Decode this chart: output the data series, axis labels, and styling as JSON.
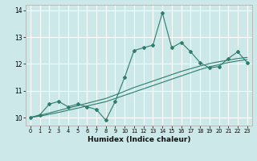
{
  "xlabel": "Humidex (Indice chaleur)",
  "ylabel": "",
  "bg_color": "#cce8e8",
  "grid_color": "#ffffff",
  "line_color": "#2e7d6e",
  "x_data": [
    0,
    1,
    2,
    3,
    4,
    5,
    6,
    7,
    8,
    9,
    10,
    11,
    12,
    13,
    14,
    15,
    16,
    17,
    18,
    19,
    20,
    21,
    22,
    23
  ],
  "y_main": [
    10.0,
    10.1,
    10.5,
    10.6,
    10.4,
    10.5,
    10.4,
    10.3,
    9.9,
    10.6,
    11.5,
    12.5,
    12.6,
    12.7,
    13.9,
    12.6,
    12.8,
    12.45,
    12.05,
    11.85,
    11.9,
    12.2,
    12.45,
    12.05
  ],
  "y_trend1": [
    10.0,
    10.05,
    10.12,
    10.19,
    10.27,
    10.35,
    10.43,
    10.51,
    10.59,
    10.71,
    10.83,
    10.95,
    11.07,
    11.19,
    11.31,
    11.43,
    11.55,
    11.67,
    11.79,
    11.89,
    11.97,
    12.05,
    12.11,
    12.16
  ],
  "y_trend2": [
    10.0,
    10.08,
    10.17,
    10.26,
    10.35,
    10.44,
    10.53,
    10.62,
    10.71,
    10.84,
    10.98,
    11.12,
    11.24,
    11.36,
    11.48,
    11.6,
    11.72,
    11.82,
    11.92,
    12.01,
    12.08,
    12.14,
    12.2,
    12.24
  ],
  "ylim": [
    9.7,
    14.2
  ],
  "yticks": [
    10,
    11,
    12,
    13,
    14
  ],
  "xticks": [
    0,
    1,
    2,
    3,
    4,
    5,
    6,
    7,
    8,
    9,
    10,
    11,
    12,
    13,
    14,
    15,
    16,
    17,
    18,
    19,
    20,
    21,
    22,
    23
  ]
}
